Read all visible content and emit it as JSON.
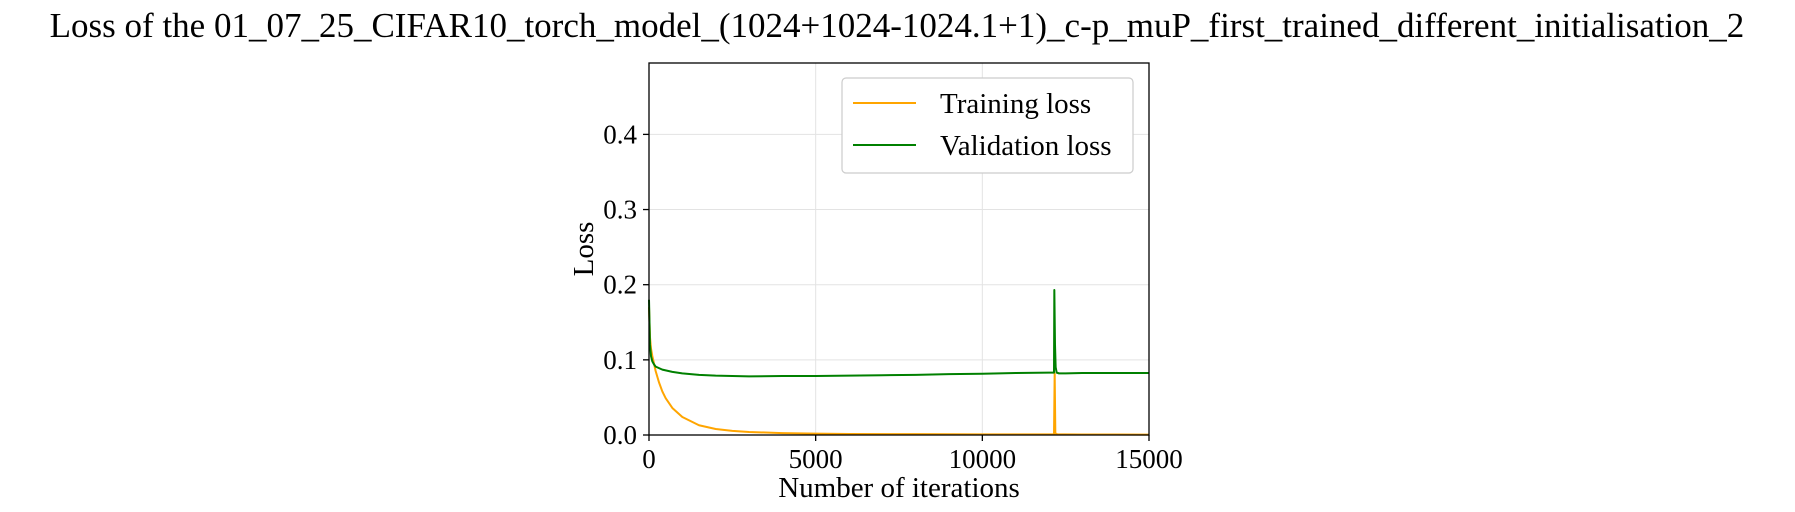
{
  "chart_data": {
    "type": "line",
    "title": "Loss of the 01_07_25_CIFAR10_torch_model_(1024+1024-1024.1+1)_c-p_muP_first_trained_different_initialisation_2",
    "xlabel": "Number of iterations",
    "ylabel": "Loss",
    "xlim": [
      0,
      15000
    ],
    "ylim": [
      0,
      0.495
    ],
    "xticks": [
      0,
      5000,
      10000,
      15000
    ],
    "xtick_labels": [
      "0",
      "5000",
      "10000",
      "15000"
    ],
    "yticks": [
      0.0,
      0.1,
      0.2,
      0.3,
      0.4
    ],
    "ytick_labels": [
      "0.0",
      "0.1",
      "0.2",
      "0.3",
      "0.4"
    ],
    "grid": true,
    "legend_position": "top-right",
    "series": [
      {
        "name": "Training loss",
        "color": "#FFA500",
        "x": [
          0,
          30,
          60,
          100,
          150,
          200,
          300,
          400,
          500,
          700,
          1000,
          1500,
          2000,
          2500,
          3000,
          4000,
          5000,
          6000,
          8000,
          10000,
          12000,
          12150,
          12170,
          12190,
          12210,
          12250,
          12300,
          12500,
          13000,
          14000,
          15000
        ],
        "y": [
          0.17,
          0.13,
          0.115,
          0.105,
          0.095,
          0.085,
          0.07,
          0.058,
          0.049,
          0.036,
          0.024,
          0.013,
          0.008,
          0.0055,
          0.004,
          0.0025,
          0.0018,
          0.0014,
          0.0011,
          0.0009,
          0.0008,
          0.0008,
          0.082,
          0.003,
          0.0015,
          0.001,
          0.0009,
          0.0008,
          0.0007,
          0.0006,
          0.0005
        ]
      },
      {
        "name": "Validation loss",
        "color": "#008000",
        "x": [
          0,
          30,
          60,
          100,
          150,
          200,
          300,
          400,
          500,
          700,
          1000,
          1500,
          2000,
          3000,
          4000,
          5000,
          6000,
          7000,
          8000,
          9000,
          10000,
          11000,
          12000,
          12150,
          12160,
          12180,
          12200,
          12230,
          12300,
          12500,
          13000,
          14000,
          15000
        ],
        "y": [
          0.18,
          0.12,
          0.105,
          0.098,
          0.094,
          0.091,
          0.089,
          0.087,
          0.086,
          0.084,
          0.082,
          0.08,
          0.079,
          0.078,
          0.0785,
          0.0785,
          0.079,
          0.0795,
          0.08,
          0.081,
          0.0815,
          0.0825,
          0.083,
          0.083,
          0.193,
          0.12,
          0.09,
          0.083,
          0.082,
          0.082,
          0.0825,
          0.0825,
          0.0825
        ]
      }
    ]
  }
}
